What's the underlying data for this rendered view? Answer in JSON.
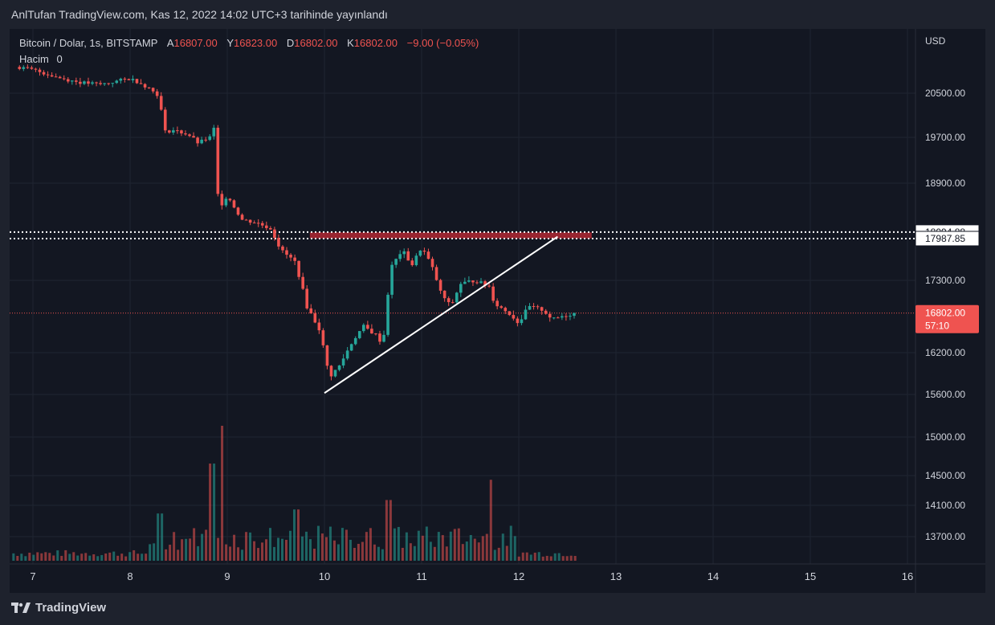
{
  "header": {
    "published_text": "AnlTufan TradingView.com, Kas 12, 2022 14:02 UTC+3 tarihinde yayınlandı"
  },
  "legend": {
    "symbol": "Bitcoin / Dolar, 1s, BITSTAMP",
    "open_label": "A",
    "open": "16807.00",
    "high_label": "Y",
    "high": "16823.00",
    "low_label": "D",
    "low": "16802.00",
    "close_label": "K",
    "close": "16802.00",
    "change": "−9.00 (−0.05%)",
    "volume_label": "Hacim",
    "volume": "0"
  },
  "footer": {
    "brand": "TradingView"
  },
  "colors": {
    "up": "#26a69a",
    "down": "#ef5350",
    "bg": "#131722",
    "text": "#d1d4dc",
    "resistance_zone": "#b22833",
    "trendline": "#ffffff"
  },
  "chart_data": {
    "type": "candlestick",
    "currency": "USD",
    "y_axis_ticks": [
      "20500.00",
      "19700.00",
      "18900.00",
      "17300.00",
      "16200.00",
      "15600.00",
      "15000.00",
      "14500.00",
      "14100.00",
      "13700.00"
    ],
    "x_axis_ticks": [
      "7",
      "8",
      "9",
      "10",
      "11",
      "12",
      "13",
      "14",
      "15",
      "16"
    ],
    "price_labels": {
      "level1": "18094.88",
      "level2": "17987.85",
      "current_price": "16802.00",
      "countdown": "57:10"
    },
    "horizontal_levels": [
      18094.88,
      17987.85
    ],
    "current_price": 16802.0,
    "resistance_zone": {
      "from_day": 9.85,
      "to_day": 12.75,
      "low": 17990,
      "high": 18090
    },
    "trendline": {
      "start": {
        "day": 10.0,
        "price": 15620
      },
      "end": {
        "day": 12.4,
        "price": 18020
      }
    },
    "series_path": [
      {
        "day": 6.82,
        "price": 20950
      },
      {
        "day": 7.0,
        "price": 20900
      },
      {
        "day": 7.3,
        "price": 20750
      },
      {
        "day": 7.5,
        "price": 20680
      },
      {
        "day": 7.7,
        "price": 20650
      },
      {
        "day": 7.9,
        "price": 20720
      },
      {
        "day": 8.0,
        "price": 20750
      },
      {
        "day": 8.1,
        "price": 20680
      },
      {
        "day": 8.2,
        "price": 20580
      },
      {
        "day": 8.3,
        "price": 20450
      },
      {
        "day": 8.35,
        "price": 19800
      },
      {
        "day": 8.45,
        "price": 19830
      },
      {
        "day": 8.6,
        "price": 19750
      },
      {
        "day": 8.7,
        "price": 19600
      },
      {
        "day": 8.82,
        "price": 19700
      },
      {
        "day": 8.85,
        "price": 20400
      },
      {
        "day": 8.88,
        "price": 19000
      },
      {
        "day": 8.92,
        "price": 18500
      },
      {
        "day": 9.0,
        "price": 18700
      },
      {
        "day": 9.15,
        "price": 18300
      },
      {
        "day": 9.3,
        "price": 18250
      },
      {
        "day": 9.45,
        "price": 18150
      },
      {
        "day": 9.55,
        "price": 17800
      },
      {
        "day": 9.7,
        "price": 17600
      },
      {
        "day": 9.82,
        "price": 16900
      },
      {
        "day": 9.95,
        "price": 16550
      },
      {
        "day": 10.05,
        "price": 15850
      },
      {
        "day": 10.15,
        "price": 16000
      },
      {
        "day": 10.3,
        "price": 16400
      },
      {
        "day": 10.4,
        "price": 16600
      },
      {
        "day": 10.55,
        "price": 16450
      },
      {
        "day": 10.6,
        "price": 16300
      },
      {
        "day": 10.68,
        "price": 17500
      },
      {
        "day": 10.8,
        "price": 17800
      },
      {
        "day": 10.9,
        "price": 17550
      },
      {
        "day": 11.0,
        "price": 17850
      },
      {
        "day": 11.1,
        "price": 17550
      },
      {
        "day": 11.2,
        "price": 17100
      },
      {
        "day": 11.3,
        "price": 16900
      },
      {
        "day": 11.4,
        "price": 17250
      },
      {
        "day": 11.55,
        "price": 17300
      },
      {
        "day": 11.7,
        "price": 17200
      },
      {
        "day": 11.75,
        "price": 16950
      },
      {
        "day": 11.9,
        "price": 16800
      },
      {
        "day": 12.0,
        "price": 16650
      },
      {
        "day": 12.1,
        "price": 16900
      },
      {
        "day": 12.25,
        "price": 16850
      },
      {
        "day": 12.35,
        "price": 16700
      },
      {
        "day": 12.45,
        "price": 16760
      },
      {
        "day": 12.58,
        "price": 16802
      }
    ],
    "volume_peaks": [
      {
        "day": 8.95,
        "value": 1.0
      },
      {
        "day": 8.85,
        "value": 0.72
      },
      {
        "day": 11.72,
        "value": 0.6
      },
      {
        "day": 10.65,
        "value": 0.45
      },
      {
        "day": 8.3,
        "value": 0.35
      },
      {
        "day": 9.7,
        "value": 0.38
      }
    ]
  }
}
